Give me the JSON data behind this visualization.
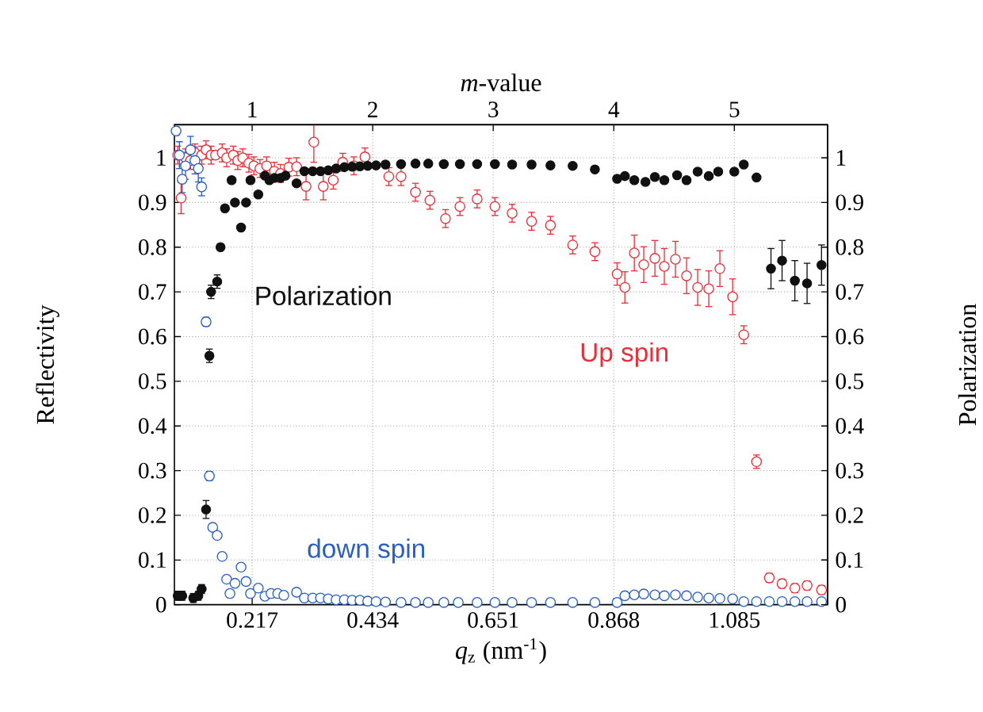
{
  "chart_data": {
    "type": "scatter",
    "xlabel": "*q*$_{z}$ (nm$^{-1}$)",
    "ylabel": "Reflectivity",
    "y2label": "Polarization",
    "x2label": "*m*-value",
    "xlim": [
      0.077,
      1.253
    ],
    "x2lim": [
      0.355,
      5.774
    ],
    "ylim": [
      0,
      1.074
    ],
    "y2lim": [
      0,
      1.074
    ],
    "xticks": [
      0.217,
      0.434,
      0.651,
      0.868,
      1.085
    ],
    "x2ticks": [
      1,
      2,
      3,
      4,
      5
    ],
    "yticks": [
      0,
      0.1,
      0.2,
      0.3,
      0.4,
      0.5,
      0.6,
      0.7,
      0.8,
      0.9,
      1
    ],
    "y2ticks": [
      0,
      0.1,
      0.2,
      0.3,
      0.4,
      0.5,
      0.6,
      0.7,
      0.8,
      0.9,
      1
    ],
    "grid": true,
    "marker": "circle",
    "series": [
      {
        "name": "Polarization",
        "color": "#111111",
        "axis": "y2",
        "x": [
          0.083,
          0.091,
          0.111,
          0.12,
          0.126,
          0.134,
          0.14,
          0.143,
          0.154,
          0.16,
          0.168,
          0.18,
          0.186,
          0.197,
          0.206,
          0.214,
          0.228,
          0.24,
          0.248,
          0.257,
          0.268,
          0.277,
          0.297,
          0.311,
          0.326,
          0.34,
          0.354,
          0.368,
          0.383,
          0.397,
          0.411,
          0.425,
          0.44,
          0.457,
          0.485,
          0.511,
          0.534,
          0.562,
          0.591,
          0.622,
          0.654,
          0.685,
          0.72,
          0.754,
          0.794,
          0.834,
          0.874,
          0.888,
          0.905,
          0.925,
          0.942,
          0.959,
          0.982,
          0.999,
          1.019,
          1.039,
          1.056,
          1.085,
          1.102,
          1.125,
          1.151,
          1.171,
          1.194,
          1.216,
          1.242
        ],
        "values": [
          0.02,
          0.02,
          0.015,
          0.02,
          0.035,
          0.213,
          0.557,
          0.7,
          0.723,
          0.8,
          0.887,
          0.95,
          0.9,
          0.844,
          0.9,
          0.95,
          0.918,
          0.96,
          0.95,
          0.955,
          0.955,
          0.96,
          0.943,
          0.97,
          0.97,
          0.97,
          0.972,
          0.976,
          0.979,
          0.98,
          0.981,
          0.982,
          0.983,
          0.985,
          0.986,
          0.987,
          0.987,
          0.986,
          0.986,
          0.986,
          0.986,
          0.985,
          0.985,
          0.983,
          0.982,
          0.974,
          0.953,
          0.959,
          0.95,
          0.946,
          0.957,
          0.95,
          0.961,
          0.95,
          0.969,
          0.959,
          0.969,
          0.969,
          0.985,
          0.956,
          0.752,
          0.77,
          0.725,
          0.719,
          0.76
        ],
        "errors": [
          0.01,
          0.01,
          0.01,
          0.01,
          0.01,
          0.02,
          0.015,
          0.015,
          0.015,
          null,
          null,
          null,
          null,
          null,
          null,
          null,
          null,
          null,
          null,
          null,
          null,
          null,
          null,
          null,
          null,
          null,
          null,
          null,
          null,
          null,
          null,
          null,
          null,
          null,
          null,
          null,
          null,
          null,
          null,
          null,
          null,
          null,
          null,
          null,
          null,
          null,
          null,
          null,
          null,
          null,
          null,
          null,
          null,
          null,
          null,
          null,
          null,
          null,
          null,
          null,
          0.045,
          0.045,
          0.045,
          0.045,
          0.045
        ]
      },
      {
        "name": "Up spin",
        "color": "#e8303a",
        "x": [
          0.083,
          0.089,
          0.097,
          0.106,
          0.114,
          0.126,
          0.134,
          0.143,
          0.151,
          0.163,
          0.171,
          0.183,
          0.191,
          0.2,
          0.211,
          0.22,
          0.231,
          0.243,
          0.257,
          0.268,
          0.283,
          0.297,
          0.314,
          0.328,
          0.345,
          0.363,
          0.38,
          0.4,
          0.42,
          0.463,
          0.485,
          0.511,
          0.537,
          0.565,
          0.591,
          0.622,
          0.654,
          0.685,
          0.72,
          0.754,
          0.794,
          0.834,
          0.874,
          0.888,
          0.905,
          0.922,
          0.942,
          0.959,
          0.979,
          0.999,
          1.019,
          1.039,
          1.059,
          1.082,
          1.102,
          1.125,
          1.148,
          1.171,
          1.194,
          1.216,
          1.242
        ],
        "values": [
          1.006,
          0.91,
          1.0,
          0.994,
          1.011,
          1.006,
          1.018,
          1.006,
          1.006,
          1.011,
          1.0,
          1.006,
          0.994,
          1.0,
          0.988,
          0.982,
          0.976,
          0.982,
          0.97,
          0.965,
          0.979,
          0.98,
          0.936,
          1.035,
          0.936,
          0.95,
          0.99,
          0.982,
          1.002,
          0.958,
          0.958,
          0.923,
          0.905,
          0.864,
          0.891,
          0.908,
          0.891,
          0.876,
          0.858,
          0.849,
          0.805,
          0.79,
          0.74,
          0.71,
          0.787,
          0.761,
          0.775,
          0.757,
          0.773,
          0.736,
          0.71,
          0.707,
          0.752,
          0.689,
          0.604,
          0.32,
          0.06,
          0.047,
          0.037,
          0.043,
          0.033
        ],
        "errors": [
          0.02,
          0.035,
          0.02,
          0.02,
          0.02,
          0.02,
          0.02,
          0.02,
          null,
          0.02,
          0.02,
          0.02,
          0.02,
          0.02,
          0.02,
          0.02,
          0.02,
          0.02,
          0.02,
          0.02,
          0.02,
          0.02,
          0.03,
          0.045,
          0.03,
          0.02,
          0.02,
          0.02,
          0.02,
          0.02,
          0.02,
          0.02,
          0.02,
          0.02,
          0.02,
          0.02,
          0.02,
          0.02,
          0.02,
          0.02,
          0.02,
          0.02,
          0.025,
          0.035,
          0.04,
          0.04,
          0.04,
          0.04,
          0.04,
          0.04,
          0.04,
          0.04,
          0.04,
          0.04,
          0.02,
          0.015,
          0.01,
          0.01,
          0.01,
          0.01,
          0.01
        ]
      },
      {
        "name": "down spin",
        "color": "#2a5fbf",
        "x": [
          0.08,
          0.086,
          0.091,
          0.097,
          0.106,
          0.114,
          0.12,
          0.126,
          0.134,
          0.14,
          0.146,
          0.154,
          0.163,
          0.171,
          0.177,
          0.186,
          0.197,
          0.206,
          0.214,
          0.228,
          0.24,
          0.251,
          0.263,
          0.274,
          0.297,
          0.311,
          0.326,
          0.34,
          0.354,
          0.368,
          0.383,
          0.397,
          0.411,
          0.425,
          0.44,
          0.457,
          0.485,
          0.511,
          0.534,
          0.562,
          0.588,
          0.622,
          0.654,
          0.685,
          0.72,
          0.754,
          0.794,
          0.834,
          0.874,
          0.888,
          0.905,
          0.922,
          0.942,
          0.959,
          0.979,
          0.999,
          1.019,
          1.039,
          1.059,
          1.082,
          1.102,
          1.125,
          1.148,
          1.171,
          1.194,
          1.216,
          1.242
        ],
        "values": [
          1.06,
          1.006,
          0.952,
          0.982,
          1.018,
          0.994,
          0.976,
          0.935,
          0.633,
          0.288,
          0.173,
          0.155,
          0.108,
          0.057,
          0.025,
          0.048,
          0.084,
          0.052,
          0.025,
          0.037,
          0.019,
          0.025,
          0.025,
          0.021,
          0.028,
          0.015,
          0.015,
          0.015,
          0.013,
          0.011,
          0.011,
          0.01,
          0.01,
          0.008,
          0.007,
          0.006,
          0.005,
          0.005,
          0.005,
          0.005,
          0.005,
          0.005,
          0.005,
          0.005,
          0.005,
          0.005,
          0.005,
          0.005,
          0.005,
          0.02,
          0.022,
          0.024,
          0.022,
          0.02,
          0.022,
          0.02,
          0.017,
          0.015,
          0.014,
          0.013,
          0.007,
          0.007,
          0.007,
          0.007,
          0.007,
          0.007,
          0.007
        ],
        "errors": [
          0.01,
          0.03,
          0.03,
          0.03,
          0.03,
          0.03,
          0.03,
          0.02,
          0.01,
          0.01,
          null,
          null,
          null,
          null,
          null,
          null,
          null,
          null,
          null,
          null,
          null,
          null,
          null,
          null,
          null,
          null,
          null,
          null,
          null,
          null,
          null,
          null,
          null,
          null,
          null,
          null,
          null,
          null,
          null,
          null,
          null,
          null,
          null,
          null,
          null,
          null,
          null,
          null,
          null,
          null,
          null,
          null,
          null,
          null,
          null,
          null,
          null,
          null,
          null,
          null,
          null,
          null,
          null,
          null,
          null,
          null,
          null
        ]
      }
    ]
  }
}
